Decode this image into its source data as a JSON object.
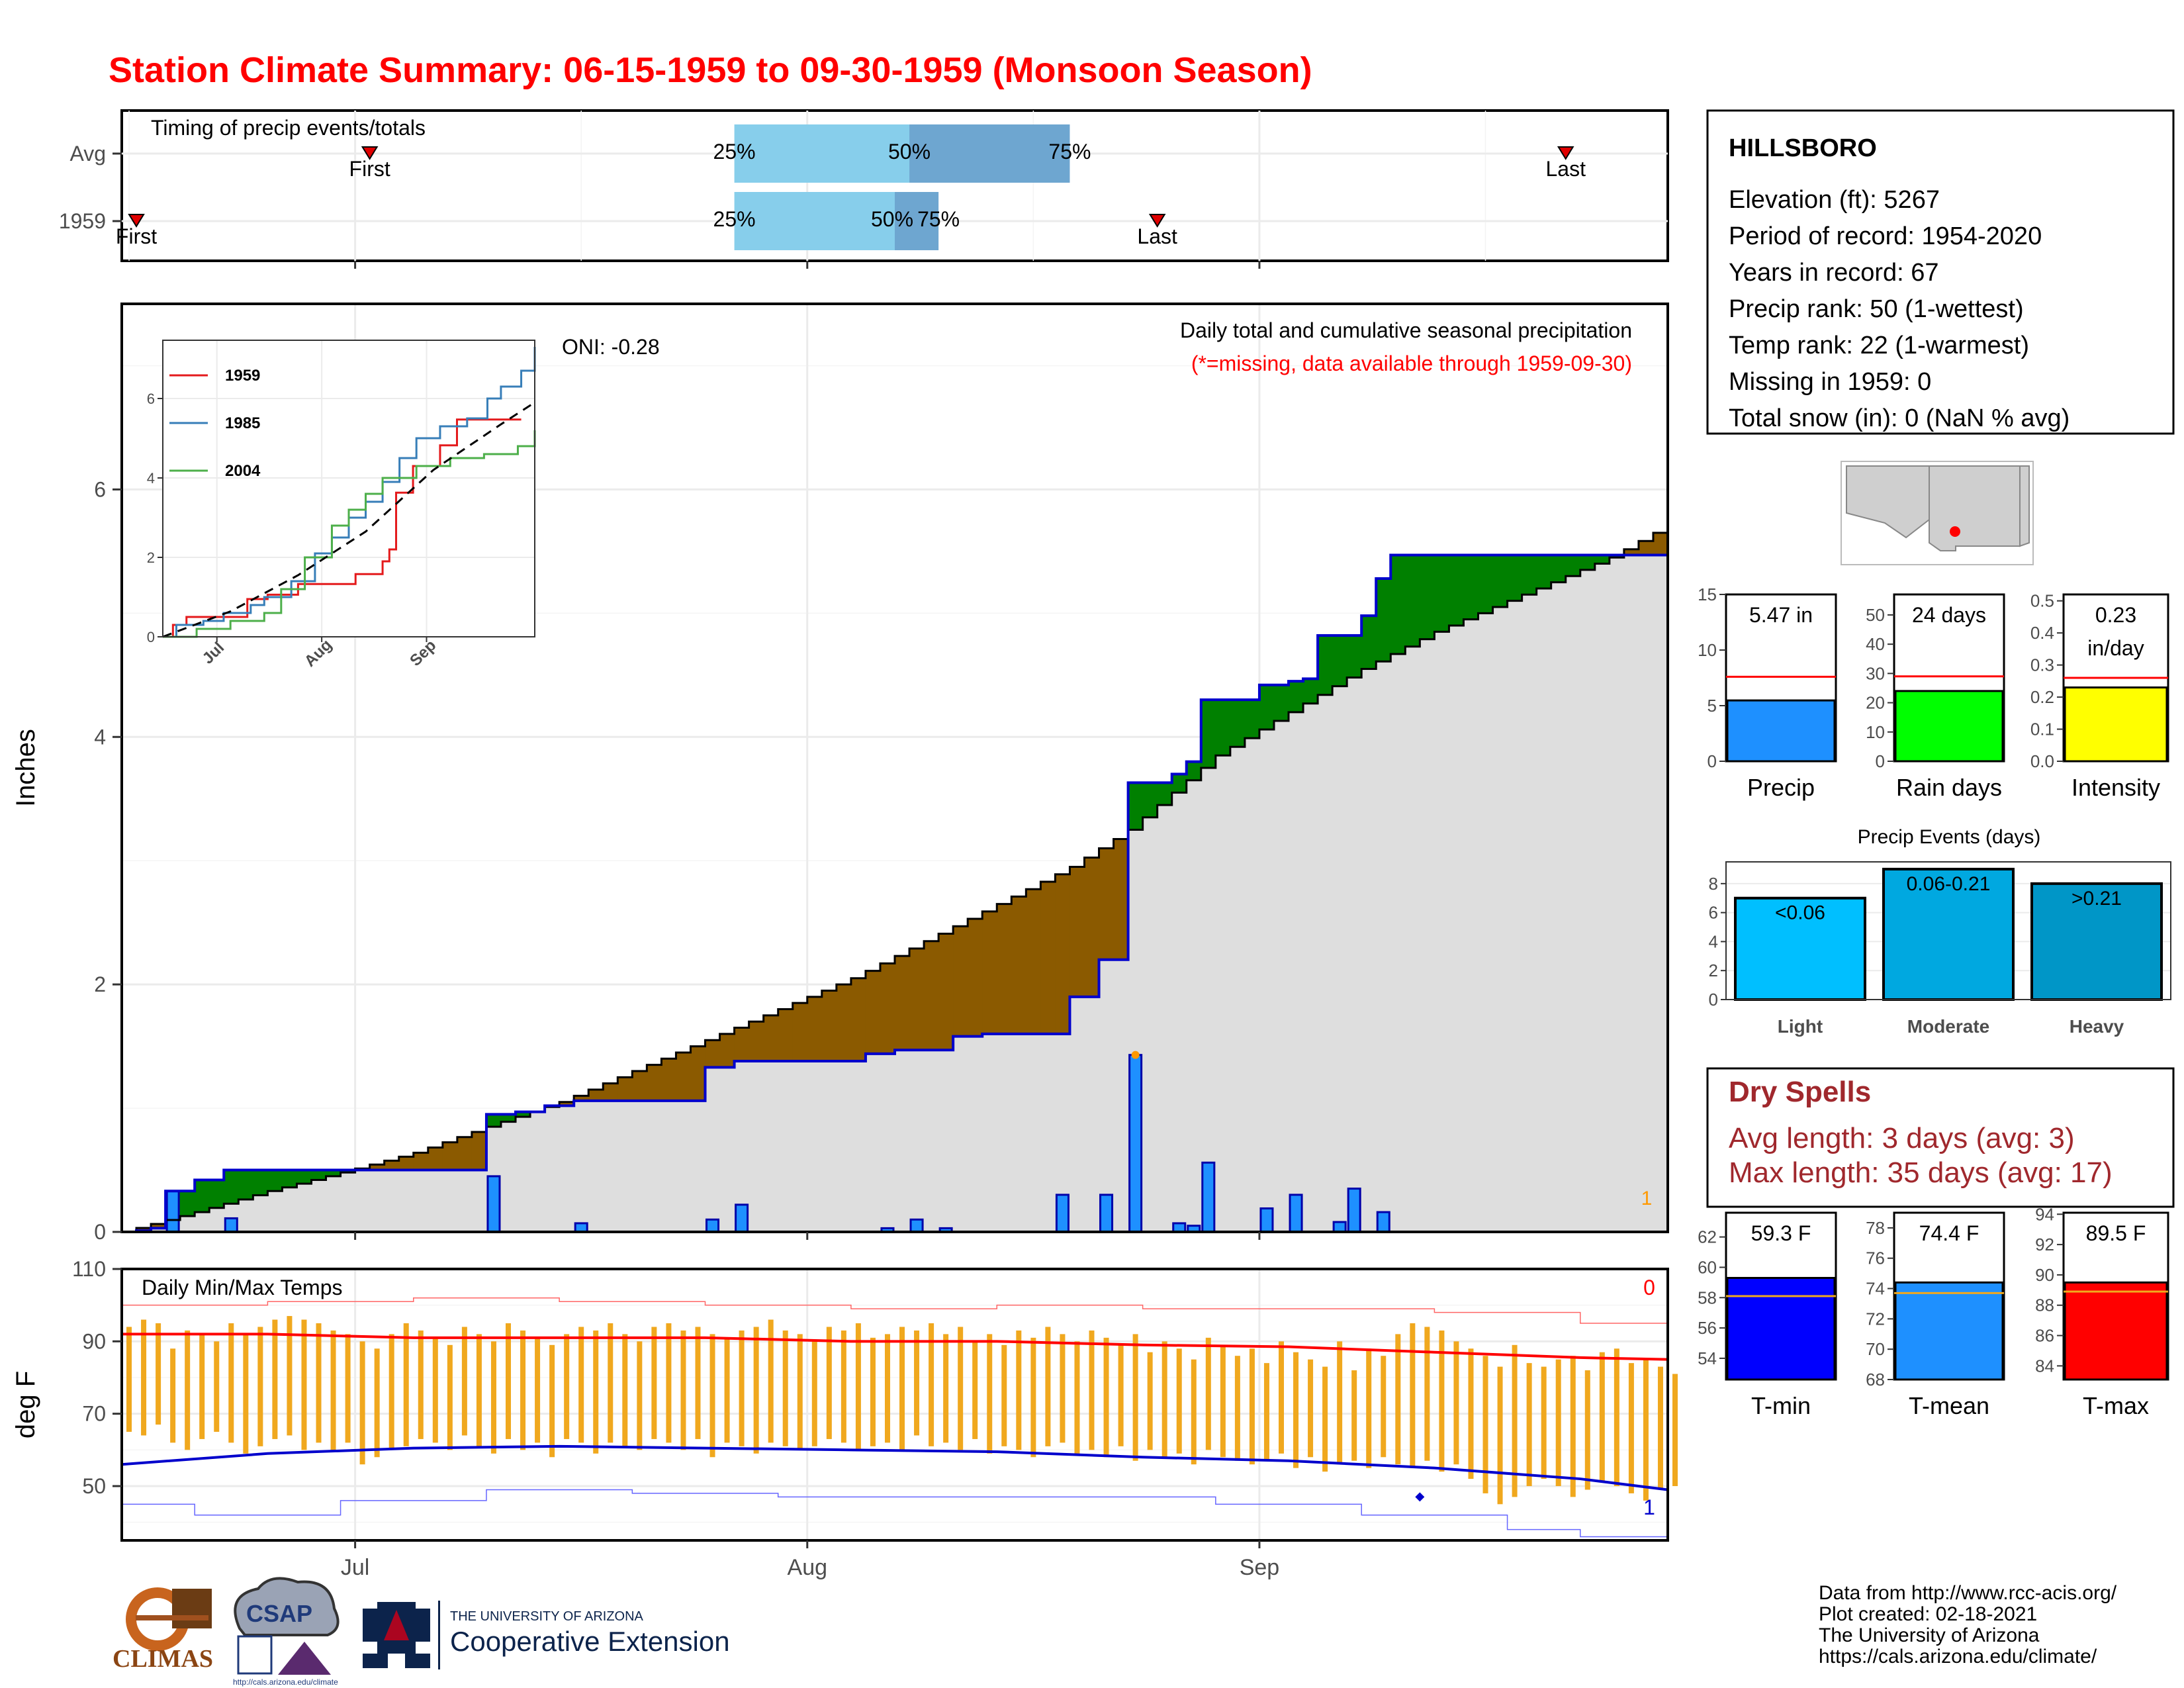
{
  "title": "Station Climate Summary: 06-15-1959 to 09-30-1959 (Monsoon Season)",
  "colors": {
    "title": "#ff0000",
    "cum_current": "#000000",
    "cum_avg": "#0000cc",
    "above_fill": "#008000",
    "below_fill": "#8b5a00",
    "daily_bar": "#1e90ff",
    "temp_bar": "#f0a81e",
    "max_line": "#ff0000",
    "min_line": "#0000cc",
    "dry_spells": "#a0282d"
  },
  "timing": {
    "label": "Timing of precip events/totals",
    "rows": [
      "Avg",
      "1959"
    ],
    "first_label": "First",
    "last_label": "Last",
    "pct_labels": [
      "25%",
      "50%",
      "75%"
    ],
    "avg": {
      "first": "2015-07-02",
      "q25": "2015-07-27",
      "q50": "2015-08-08",
      "q75": "2015-08-19",
      "last": "2015-09-22"
    },
    "y1959": {
      "first": "2015-06-16",
      "q25": "2015-07-27",
      "q50": "2015-08-07",
      "q75": "2015-08-10",
      "last": "2015-08-25"
    }
  },
  "month_ticks": [
    "Jul",
    "Aug",
    "Sep"
  ],
  "chart_data": [
    {
      "type": "area",
      "name": "precip",
      "title": "Daily total and cumulative seasonal precipitation",
      "subtitle": "(*=missing, data available through 1959-09-30)",
      "ylabel": "Inches",
      "xlim": [
        "1959-06-15",
        "1959-09-30"
      ],
      "ylim": [
        0,
        7.5
      ],
      "yticks": [
        0,
        2,
        4,
        6
      ],
      "missing_count": "1",
      "oni_label": "ONI: -0.28",
      "cumulative_1959": [
        [
          0,
          0
        ],
        [
          1,
          0.01
        ],
        [
          2,
          0.03
        ],
        [
          3,
          0.33
        ],
        [
          5,
          0.42
        ],
        [
          7,
          0.5
        ],
        [
          24,
          0.5
        ],
        [
          25,
          0.95
        ],
        [
          27,
          0.97
        ],
        [
          29,
          1.02
        ],
        [
          31,
          1.06
        ],
        [
          34,
          1.06
        ],
        [
          40,
          1.33
        ],
        [
          42,
          1.38
        ],
        [
          50,
          1.38
        ],
        [
          51,
          1.44
        ],
        [
          53,
          1.47
        ],
        [
          56,
          1.47
        ],
        [
          57,
          1.58
        ],
        [
          59,
          1.6
        ],
        [
          60,
          1.6
        ],
        [
          65,
          1.9
        ],
        [
          66,
          1.9
        ],
        [
          67,
          2.2
        ],
        [
          68,
          2.2
        ],
        [
          69,
          3.63
        ],
        [
          72,
          3.7
        ],
        [
          73,
          3.8
        ],
        [
          74,
          4.3
        ],
        [
          77,
          4.3
        ],
        [
          78,
          4.42
        ],
        [
          80,
          4.45
        ],
        [
          81,
          4.47
        ],
        [
          82,
          4.82
        ],
        [
          84,
          4.82
        ],
        [
          85,
          4.98
        ],
        [
          86,
          5.28
        ],
        [
          87,
          5.47
        ],
        [
          106,
          5.47
        ]
      ],
      "cumulative_avg": [
        [
          0,
          0
        ],
        [
          5,
          0.16
        ],
        [
          10,
          0.33
        ],
        [
          15,
          0.48
        ],
        [
          20,
          0.64
        ],
        [
          25,
          0.85
        ],
        [
          30,
          1.05
        ],
        [
          35,
          1.3
        ],
        [
          40,
          1.55
        ],
        [
          45,
          1.8
        ],
        [
          50,
          2.05
        ],
        [
          55,
          2.35
        ],
        [
          60,
          2.65
        ],
        [
          65,
          2.95
        ],
        [
          69,
          3.25
        ],
        [
          75,
          3.85
        ],
        [
          80,
          4.2
        ],
        [
          85,
          4.55
        ],
        [
          90,
          4.85
        ],
        [
          95,
          5.1
        ],
        [
          100,
          5.35
        ],
        [
          102,
          5.45
        ],
        [
          105,
          5.65
        ],
        [
          110,
          5.9
        ],
        [
          115,
          6.2
        ],
        [
          120,
          6.45
        ],
        [
          125,
          6.7
        ],
        [
          130,
          6.95
        ],
        [
          132,
          7.05
        ],
        [
          135,
          7.1
        ]
      ],
      "daily_bars": [
        [
          3,
          0.33
        ],
        [
          7,
          0.11
        ],
        [
          25,
          0.45
        ],
        [
          31,
          0.07
        ],
        [
          40,
          0.1
        ],
        [
          42,
          0.22
        ],
        [
          52,
          0.03
        ],
        [
          54,
          0.1
        ],
        [
          56,
          0.03
        ],
        [
          64,
          0.3
        ],
        [
          67,
          0.3
        ],
        [
          69,
          1.43
        ],
        [
          72,
          0.07
        ],
        [
          73,
          0.05
        ],
        [
          74,
          0.56
        ],
        [
          78,
          0.19
        ],
        [
          80,
          0.3
        ],
        [
          83,
          0.08
        ],
        [
          84,
          0.35
        ],
        [
          86,
          0.16
        ]
      ]
    },
    {
      "type": "line",
      "name": "precip_inset",
      "yticks": [
        0,
        2,
        4,
        6
      ],
      "xticks": [
        "Jul",
        "Aug",
        "Sep"
      ],
      "series": [
        {
          "name": "1959",
          "color": "#e41a1c",
          "values": [
            [
              0,
              0
            ],
            [
              3,
              0.3
            ],
            [
              7,
              0.5
            ],
            [
              24,
              0.5
            ],
            [
              25,
              0.95
            ],
            [
              31,
              1.06
            ],
            [
              40,
              1.33
            ],
            [
              57,
              1.58
            ],
            [
              65,
              1.9
            ],
            [
              67,
              2.2
            ],
            [
              69,
              3.63
            ],
            [
              74,
              4.3
            ],
            [
              82,
              4.82
            ],
            [
              87,
              5.47
            ],
            [
              106,
              5.47
            ]
          ]
        },
        {
          "name": "1985",
          "color": "#377eb8",
          "values": [
            [
              0,
              0
            ],
            [
              4,
              0.3
            ],
            [
              12,
              0.4
            ],
            [
              18,
              0.6
            ],
            [
              26,
              0.8
            ],
            [
              30,
              1.0
            ],
            [
              38,
              1.4
            ],
            [
              45,
              2.1
            ],
            [
              50,
              2.5
            ],
            [
              55,
              3.0
            ],
            [
              60,
              3.4
            ],
            [
              65,
              3.9
            ],
            [
              70,
              4.5
            ],
            [
              75,
              5.0
            ],
            [
              82,
              5.3
            ],
            [
              90,
              5.5
            ],
            [
              96,
              6.0
            ],
            [
              100,
              6.3
            ],
            [
              106,
              6.7
            ],
            [
              110,
              7.3
            ]
          ]
        },
        {
          "name": "2004",
          "color": "#4daf4a",
          "values": [
            [
              0,
              0
            ],
            [
              10,
              0.2
            ],
            [
              20,
              0.4
            ],
            [
              30,
              0.6
            ],
            [
              35,
              1.2
            ],
            [
              42,
              2.0
            ],
            [
              50,
              2.8
            ],
            [
              55,
              3.2
            ],
            [
              60,
              3.6
            ],
            [
              65,
              4.0
            ],
            [
              75,
              4.3
            ],
            [
              85,
              4.5
            ],
            [
              95,
              4.6
            ],
            [
              105,
              4.8
            ],
            [
              110,
              5.2
            ]
          ]
        },
        {
          "name": "avg",
          "color": "#000000",
          "values": [
            [
              0,
              0
            ],
            [
              20,
              0.64
            ],
            [
              40,
              1.55
            ],
            [
              60,
              2.65
            ],
            [
              80,
              4.2
            ],
            [
              100,
              5.35
            ],
            [
              110,
              5.9
            ]
          ]
        }
      ]
    },
    {
      "type": "bar",
      "name": "temps",
      "title": "Daily Min/Max Temps",
      "ylabel": "deg F",
      "ylim": [
        35,
        110
      ],
      "yticks": [
        50,
        70,
        90,
        110
      ],
      "max_count_label": "0",
      "min_count_label": "1",
      "daily_max": [
        94,
        96,
        95,
        88,
        93,
        92,
        90,
        95,
        92,
        94,
        96,
        97,
        96,
        95,
        93,
        92,
        90,
        88,
        92,
        95,
        93,
        91,
        89,
        94,
        92,
        90,
        95,
        93,
        91,
        89,
        92,
        94,
        93,
        95,
        92,
        90,
        94,
        95,
        93,
        94,
        92,
        91,
        93,
        94,
        96,
        93,
        92,
        90,
        94,
        93,
        95,
        91,
        92,
        94,
        93,
        95,
        92,
        94,
        90,
        92,
        89,
        93,
        91,
        94,
        92,
        90,
        93,
        91,
        89,
        92,
        87,
        90,
        88,
        85,
        91,
        89,
        86,
        88,
        84,
        90,
        87,
        85,
        83,
        90,
        82,
        88,
        86,
        92,
        95,
        94,
        93,
        90,
        88,
        86,
        83,
        89,
        84,
        83,
        85,
        86,
        82,
        87,
        88,
        84,
        85,
        83,
        81
      ],
      "daily_min": [
        65,
        64,
        67,
        62,
        60,
        63,
        65,
        62,
        59,
        61,
        63,
        64,
        60,
        62,
        60,
        62,
        56,
        58,
        60,
        61,
        63,
        62,
        60,
        64,
        61,
        59,
        63,
        60,
        62,
        58,
        63,
        62,
        59,
        62,
        61,
        60,
        63,
        62,
        60,
        63,
        58,
        62,
        61,
        59,
        62,
        61,
        60,
        61,
        63,
        62,
        60,
        61,
        62,
        60,
        64,
        61,
        62,
        60,
        63,
        59,
        61,
        60,
        58,
        61,
        62,
        59,
        60,
        58,
        61,
        57,
        60,
        58,
        59,
        56,
        60,
        58,
        57,
        56,
        57,
        59,
        55,
        58,
        54,
        56,
        57,
        55,
        58,
        56,
        55,
        57,
        54,
        56,
        52,
        48,
        45,
        47,
        50,
        52,
        50,
        47,
        49,
        51,
        50,
        48,
        46,
        49,
        50
      ],
      "avg_max": [
        [
          0,
          92
        ],
        [
          10,
          92
        ],
        [
          20,
          91
        ],
        [
          30,
          91
        ],
        [
          40,
          91
        ],
        [
          50,
          90
        ],
        [
          60,
          90
        ],
        [
          70,
          89
        ],
        [
          80,
          88.5
        ],
        [
          90,
          87
        ],
        [
          100,
          85.5
        ],
        [
          106,
          85
        ]
      ],
      "avg_min": [
        [
          0,
          56
        ],
        [
          10,
          59
        ],
        [
          20,
          60.5
        ],
        [
          30,
          61
        ],
        [
          40,
          60.5
        ],
        [
          50,
          60
        ],
        [
          60,
          59.5
        ],
        [
          70,
          58
        ],
        [
          80,
          57
        ],
        [
          90,
          55
        ],
        [
          100,
          52
        ],
        [
          106,
          49
        ]
      ],
      "record_max": [
        [
          0,
          100
        ],
        [
          10,
          101
        ],
        [
          20,
          102
        ],
        [
          30,
          101
        ],
        [
          40,
          100
        ],
        [
          50,
          99
        ],
        [
          60,
          100
        ],
        [
          70,
          99
        ],
        [
          80,
          99
        ],
        [
          90,
          98
        ],
        [
          100,
          95
        ],
        [
          106,
          93
        ]
      ],
      "record_min": [
        [
          0,
          45
        ],
        [
          5,
          42
        ],
        [
          15,
          46
        ],
        [
          25,
          49
        ],
        [
          35,
          48
        ],
        [
          45,
          47
        ],
        [
          55,
          47
        ],
        [
          65,
          47
        ],
        [
          75,
          45
        ],
        [
          85,
          42
        ],
        [
          95,
          38
        ],
        [
          100,
          36
        ],
        [
          106,
          37
        ]
      ]
    },
    {
      "type": "bar",
      "name": "precip_panel",
      "categories": [
        "Precip"
      ],
      "values": [
        5.47
      ],
      "label": "5.47 in",
      "avg": 7.6,
      "ylim": [
        0,
        15
      ],
      "yticks": [
        0,
        5,
        10,
        15
      ],
      "color": "#1e90ff"
    },
    {
      "type": "bar",
      "name": "raindays_panel",
      "categories": [
        "Rain days"
      ],
      "values": [
        24
      ],
      "label": "24 days",
      "avg": 29,
      "ylim": [
        0,
        57
      ],
      "yticks": [
        0,
        10,
        20,
        30,
        40,
        50
      ],
      "color": "#00ff00"
    },
    {
      "type": "bar",
      "name": "intensity_panel",
      "categories": [
        "Intensity"
      ],
      "values": [
        0.23
      ],
      "label_line1": "0.23",
      "label_line2": "in/day",
      "avg": 0.26,
      "ylim": [
        0,
        0.52
      ],
      "yticks": [
        0.0,
        0.1,
        0.2,
        0.3,
        0.4,
        0.5
      ],
      "color": "#ffff00"
    },
    {
      "type": "bar",
      "name": "precip_events",
      "title": "Precip Events (days)",
      "categories": [
        "Light",
        "Moderate",
        "Heavy"
      ],
      "bar_labels": [
        "<0.06",
        "0.06-0.21",
        ">0.21"
      ],
      "values": [
        7,
        9,
        8
      ],
      "ylim": [
        0,
        9.5
      ],
      "yticks": [
        0,
        2,
        4,
        6,
        8
      ],
      "colors": [
        "#00bfff",
        "#00a8e0",
        "#0096c7"
      ]
    },
    {
      "type": "bar",
      "name": "tmin_panel",
      "categories": [
        "T-min"
      ],
      "values": [
        59.3
      ],
      "label": "59.3 F",
      "avg": 58.1,
      "ylim": [
        52.6,
        63.6
      ],
      "yticks": [
        54,
        56,
        58,
        60,
        62
      ],
      "color": "#0000ff"
    },
    {
      "type": "bar",
      "name": "tmean_panel",
      "categories": [
        "T-mean"
      ],
      "values": [
        74.4
      ],
      "label": "74.4 F",
      "avg": 73.7,
      "ylim": [
        68,
        79
      ],
      "yticks": [
        68,
        70,
        72,
        74,
        76,
        78
      ],
      "color": "#1e90ff"
    },
    {
      "type": "bar",
      "name": "tmax_panel",
      "categories": [
        "T-max"
      ],
      "values": [
        89.5
      ],
      "label": "89.5 F",
      "avg": 88.9,
      "ylim": [
        83.1,
        94.1
      ],
      "yticks": [
        84,
        86,
        88,
        90,
        92,
        94
      ],
      "color": "#ff0000"
    }
  ],
  "station": {
    "name": "HILLSBORO",
    "lines": [
      "Elevation (ft): 5267",
      "Period of record: 1954-2020",
      "Years in record: 67",
      "Precip rank: 50 (1-wettest)",
      "Temp rank: 22 (1-warmest)",
      "Missing in 1959: 0",
      "Total snow (in): 0 (NaN % avg)"
    ]
  },
  "dry_spells": {
    "title": "Dry Spells",
    "avg_line": "Avg length: 3 days (avg: 3)",
    "max_line": "Max length: 35 days (avg: 17)"
  },
  "footer": {
    "lines": [
      "Data from http://www.rcc-acis.org/",
      "Plot created: 02-18-2021",
      "The University of Arizona",
      "https://cals.arizona.edu/climate/"
    ],
    "logos": {
      "climas": "CLIMAS",
      "csap": "CSAP",
      "csap_url": "http://cals.arizona.edu/climate",
      "ua_small": "THE UNIVERSITY OF ARIZONA",
      "ua_big": "Cooperative Extension"
    }
  }
}
